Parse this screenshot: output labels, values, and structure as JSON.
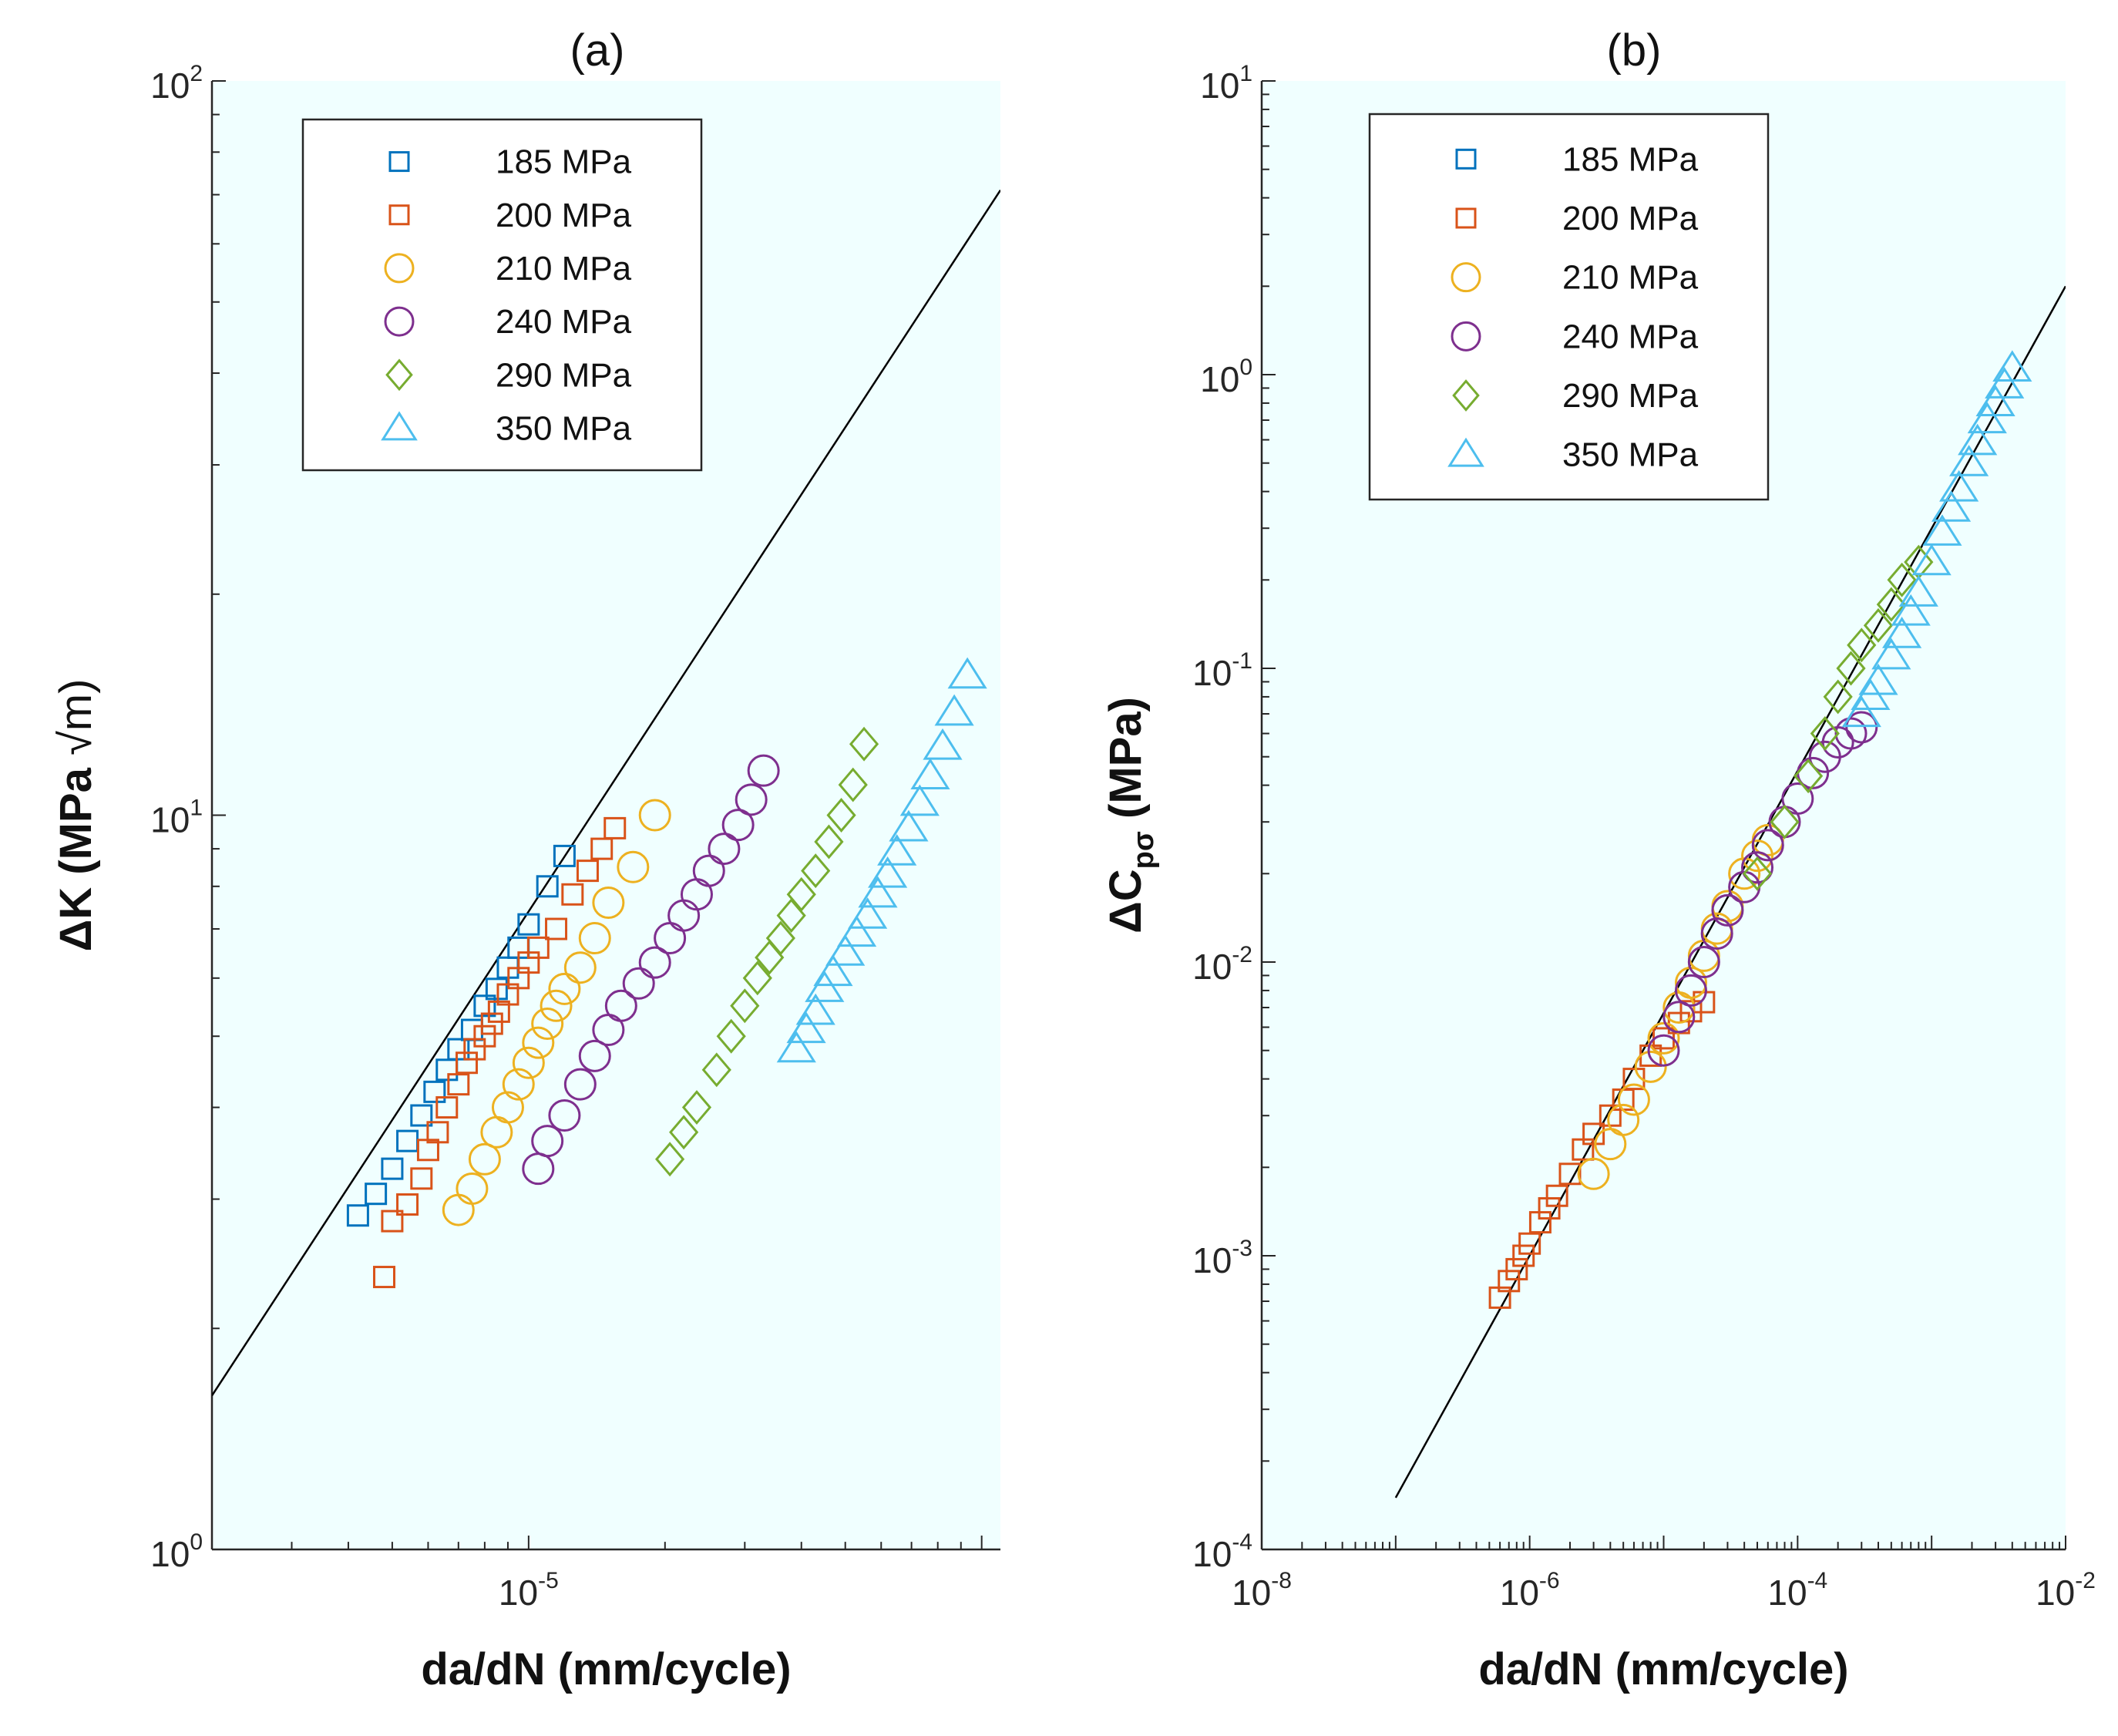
{
  "chart_data": [
    {
      "panel_title": "(a)",
      "type": "scatter",
      "xlabel": "da/dN (mm/cycle)",
      "ylabel_main": "ΔK (MPa ",
      "ylabel_root": "√m)",
      "xscale": "log",
      "yscale": "log",
      "xlim": [
        2e-06,
        0.00011
      ],
      "ylim": [
        1,
        100
      ],
      "xticks": [
        {
          "base": "10",
          "exp": "-5",
          "value": 1e-05
        }
      ],
      "yticks": [
        {
          "base": "10",
          "exp": "0",
          "value": 1
        },
        {
          "base": "10",
          "exp": "1",
          "value": 10
        },
        {
          "base": "10",
          "exp": "2",
          "value": 100
        }
      ],
      "grid": false,
      "legend_position": "top-left",
      "fit_line": {
        "x": [
          2e-06,
          0.00011
        ],
        "y": [
          1.62,
          71.0
        ]
      },
      "series": [
        {
          "name": "185 MPa",
          "marker": "square",
          "color": "#0072BD",
          "x": [
            4.2e-06,
            4.6e-06,
            5e-06,
            5.4e-06,
            5.8e-06,
            6.2e-06,
            6.6e-06,
            7e-06,
            7.5e-06,
            8e-06,
            8.5e-06,
            9e-06,
            9.5e-06,
            1e-05,
            1.1e-05,
            1.2e-05
          ],
          "y": [
            2.85,
            3.05,
            3.3,
            3.6,
            3.9,
            4.2,
            4.5,
            4.8,
            5.1,
            5.5,
            5.8,
            6.2,
            6.6,
            7.1,
            8.0,
            8.8
          ]
        },
        {
          "name": "200 MPa",
          "marker": "square",
          "color": "#D95319",
          "x": [
            4.8e-06,
            5e-06,
            5.4e-06,
            5.8e-06,
            6e-06,
            6.3e-06,
            6.6e-06,
            7e-06,
            7.3e-06,
            7.6e-06,
            8e-06,
            8.3e-06,
            8.6e-06,
            9e-06,
            9.5e-06,
            1e-05,
            1.05e-05,
            1.15e-05,
            1.25e-05,
            1.35e-05,
            1.45e-05,
            1.55e-05
          ],
          "y": [
            2.35,
            2.8,
            2.95,
            3.2,
            3.5,
            3.7,
            4.0,
            4.3,
            4.6,
            4.8,
            5.0,
            5.2,
            5.4,
            5.7,
            6.0,
            6.3,
            6.6,
            7.0,
            7.8,
            8.4,
            9.0,
            9.6
          ]
        },
        {
          "name": "210 MPa",
          "marker": "circle",
          "color": "#EDB120",
          "x": [
            7e-06,
            7.5e-06,
            8e-06,
            8.5e-06,
            9e-06,
            9.5e-06,
            1e-05,
            1.05e-05,
            1.1e-05,
            1.15e-05,
            1.2e-05,
            1.3e-05,
            1.4e-05,
            1.5e-05,
            1.7e-05,
            1.9e-05
          ],
          "y": [
            2.9,
            3.1,
            3.4,
            3.7,
            4.0,
            4.3,
            4.6,
            4.9,
            5.2,
            5.5,
            5.8,
            6.2,
            6.8,
            7.6,
            8.5,
            10.0
          ]
        },
        {
          "name": "240 MPa",
          "marker": "circle",
          "color": "#7E2F8E",
          "x": [
            1.05e-05,
            1.1e-05,
            1.2e-05,
            1.3e-05,
            1.4e-05,
            1.5e-05,
            1.6e-05,
            1.75e-05,
            1.9e-05,
            2.05e-05,
            2.2e-05,
            2.35e-05,
            2.5e-05,
            2.7e-05,
            2.9e-05,
            3.1e-05,
            3.3e-05
          ],
          "y": [
            3.3,
            3.6,
            3.9,
            4.3,
            4.7,
            5.1,
            5.5,
            5.9,
            6.3,
            6.8,
            7.3,
            7.8,
            8.4,
            9.0,
            9.7,
            10.5,
            11.5
          ]
        },
        {
          "name": "290 MPa",
          "marker": "diamond",
          "color": "#77AC30",
          "x": [
            2.05e-05,
            2.2e-05,
            2.35e-05,
            2.6e-05,
            2.8e-05,
            3e-05,
            3.2e-05,
            3.4e-05,
            3.6e-05,
            3.8e-05,
            4e-05,
            4.3e-05,
            4.6e-05,
            4.9e-05,
            5.2e-05,
            5.5e-05
          ],
          "y": [
            3.4,
            3.7,
            4.0,
            4.5,
            5.0,
            5.5,
            6.0,
            6.4,
            6.8,
            7.3,
            7.8,
            8.4,
            9.2,
            10.0,
            11.0,
            12.5
          ]
        },
        {
          "name": "350 MPa",
          "marker": "triangle",
          "color": "#4DBEEE",
          "x": [
            3.9e-05,
            4.1e-05,
            4.3e-05,
            4.5e-05,
            4.7e-05,
            5e-05,
            5.3e-05,
            5.6e-05,
            5.9e-05,
            6.2e-05,
            6.5e-05,
            6.9e-05,
            7.3e-05,
            7.7e-05,
            8.2e-05,
            8.7e-05,
            9.3e-05
          ],
          "y": [
            4.8,
            5.1,
            5.4,
            5.8,
            6.1,
            6.5,
            6.9,
            7.3,
            7.8,
            8.3,
            8.9,
            9.6,
            10.4,
            11.3,
            12.4,
            13.8,
            15.5
          ]
        }
      ]
    },
    {
      "panel_title": "(b)",
      "type": "scatter",
      "xlabel": "da/dN (mm/cycle)",
      "ylabel_main": "ΔC",
      "ylabel_sub": "pσ",
      "ylabel_unit": " (MPa)",
      "xscale": "log",
      "yscale": "log",
      "xlim": [
        1e-08,
        0.01
      ],
      "ylim": [
        0.0001,
        10
      ],
      "xticks": [
        {
          "base": "10",
          "exp": "-8",
          "value": 1e-08
        },
        {
          "base": "10",
          "exp": "-6",
          "value": 1e-06
        },
        {
          "base": "10",
          "exp": "-4",
          "value": 0.0001
        },
        {
          "base": "10",
          "exp": "-2",
          "value": 0.01
        }
      ],
      "yticks": [
        {
          "base": "10",
          "exp": "-4",
          "value": 0.0001
        },
        {
          "base": "10",
          "exp": "-3",
          "value": 0.001
        },
        {
          "base": "10",
          "exp": "-2",
          "value": 0.01
        },
        {
          "base": "10",
          "exp": "-1",
          "value": 0.1
        },
        {
          "base": "10",
          "exp": "0",
          "value": 1
        },
        {
          "base": "10",
          "exp": "1",
          "value": 10
        }
      ],
      "grid": false,
      "legend_position": "top-left",
      "fit_line": {
        "x": [
          1e-07,
          0.01
        ],
        "y": [
          0.00015,
          2.0
        ]
      },
      "series": [
        {
          "name": "185 MPa",
          "marker": "square",
          "color": "#0072BD",
          "x": [],
          "y": []
        },
        {
          "name": "200 MPa",
          "marker": "square",
          "color": "#D95319",
          "x": [
            6e-07,
            7e-07,
            8e-07,
            9e-07,
            1e-06,
            1.2e-06,
            1.4e-06,
            1.6e-06,
            2e-06,
            2.5e-06,
            3e-06,
            4e-06,
            5e-06,
            6e-06,
            8e-06,
            1e-05,
            1.3e-05,
            1.6e-05,
            2e-05
          ],
          "y": [
            0.00072,
            0.00082,
            0.0009,
            0.001,
            0.0011,
            0.0013,
            0.00145,
            0.0016,
            0.0019,
            0.0023,
            0.0026,
            0.003,
            0.0034,
            0.004,
            0.0048,
            0.0055,
            0.0062,
            0.0068,
            0.0073
          ]
        },
        {
          "name": "210 MPa",
          "marker": "circle",
          "color": "#EDB120",
          "x": [
            3e-06,
            4e-06,
            5e-06,
            6e-06,
            8e-06,
            1e-05,
            1.3e-05,
            1.6e-05,
            2e-05,
            2.5e-05,
            3e-05,
            4e-05,
            5e-05,
            6e-05
          ],
          "y": [
            0.0019,
            0.0024,
            0.0029,
            0.0034,
            0.0044,
            0.0055,
            0.007,
            0.0085,
            0.0105,
            0.013,
            0.0155,
            0.02,
            0.023,
            0.026
          ]
        },
        {
          "name": "240 MPa",
          "marker": "circle",
          "color": "#7E2F8E",
          "x": [
            1e-05,
            1.3e-05,
            1.6e-05,
            2e-05,
            2.5e-05,
            3e-05,
            4e-05,
            5e-05,
            6e-05,
            8e-05,
            0.0001,
            0.00013,
            0.00016,
            0.0002,
            0.00025,
            0.0003
          ],
          "y": [
            0.005,
            0.0065,
            0.008,
            0.01,
            0.0125,
            0.015,
            0.018,
            0.021,
            0.025,
            0.03,
            0.036,
            0.044,
            0.05,
            0.056,
            0.06,
            0.063
          ]
        },
        {
          "name": "290 MPa",
          "marker": "diamond",
          "color": "#77AC30",
          "x": [
            5e-05,
            8e-05,
            0.00012,
            0.00016,
            0.0002,
            0.00025,
            0.0003,
            0.0004,
            0.0005,
            0.0006,
            0.0008
          ],
          "y": [
            0.02,
            0.03,
            0.043,
            0.06,
            0.08,
            0.1,
            0.12,
            0.14,
            0.165,
            0.2,
            0.23
          ]
        },
        {
          "name": "350 MPa",
          "marker": "triangle",
          "color": "#4DBEEE",
          "x": [
            0.0003,
            0.00035,
            0.0004,
            0.0005,
            0.0006,
            0.0007,
            0.0008,
            0.001,
            0.0012,
            0.0014,
            0.0016,
            0.0019,
            0.0022,
            0.0026,
            0.003,
            0.0035,
            0.004
          ],
          "y": [
            0.07,
            0.08,
            0.09,
            0.11,
            0.13,
            0.155,
            0.18,
            0.23,
            0.29,
            0.35,
            0.41,
            0.5,
            0.59,
            0.7,
            0.8,
            0.92,
            1.05
          ]
        }
      ]
    }
  ],
  "colors": {
    "plot_background": "#F0FFFF",
    "axis": "#262626",
    "fit_line": "#000000"
  }
}
